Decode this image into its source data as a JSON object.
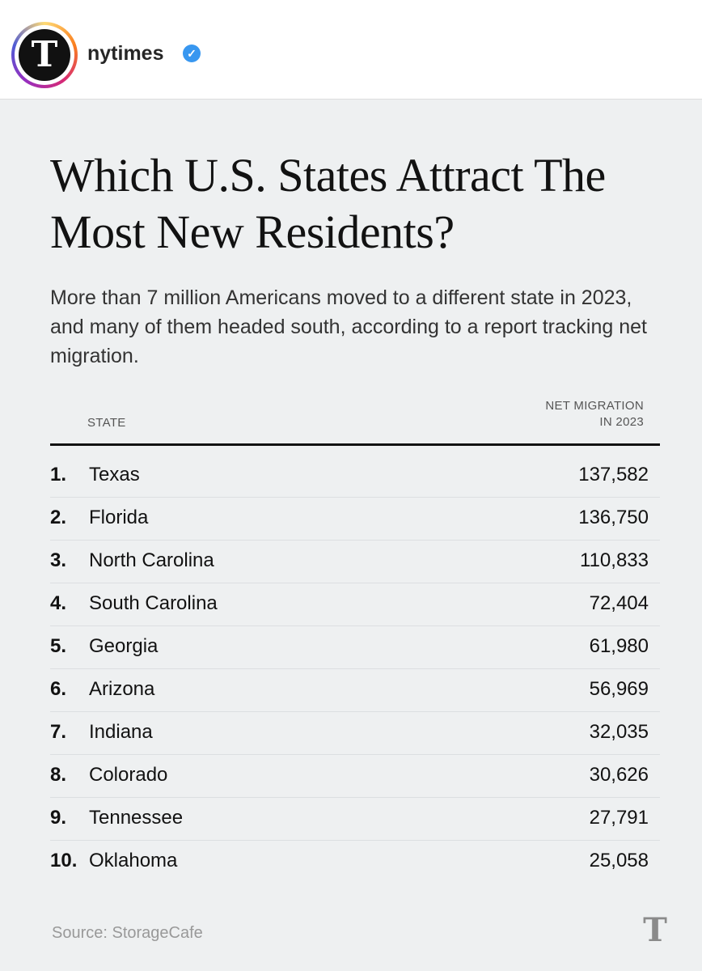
{
  "header": {
    "account_name": "nytimes",
    "logo_glyph": "T",
    "verified_glyph": "✓",
    "verified_color": "#3897f0"
  },
  "title": "Which U.S. States Attract The Most New Residents?",
  "subtitle": "More than 7 million Americans moved to a different state in 2023, and many of them headed south, according to a report tracking net migration.",
  "chart_data": {
    "type": "table",
    "columns": [
      "STATE",
      "NET MIGRATION IN 2023"
    ],
    "column_value_line1": "NET MIGRATION",
    "column_value_line2": "IN 2023",
    "rows": [
      {
        "rank": "1.",
        "state": "Texas",
        "value": "137,582"
      },
      {
        "rank": "2.",
        "state": "Florida",
        "value": "136,750"
      },
      {
        "rank": "3.",
        "state": "North Carolina",
        "value": "110,833"
      },
      {
        "rank": "4.",
        "state": "South Carolina",
        "value": "72,404"
      },
      {
        "rank": "5.",
        "state": "Georgia",
        "value": "61,980"
      },
      {
        "rank": "6.",
        "state": "Arizona",
        "value": "56,969"
      },
      {
        "rank": "7.",
        "state": "Indiana",
        "value": "32,035"
      },
      {
        "rank": "8.",
        "state": "Colorado",
        "value": "30,626"
      },
      {
        "rank": "9.",
        "state": "Tennessee",
        "value": "27,791"
      },
      {
        "rank": "10.",
        "state": "Oklahoma",
        "value": "25,058"
      }
    ]
  },
  "source": "Source: StorageCafe"
}
